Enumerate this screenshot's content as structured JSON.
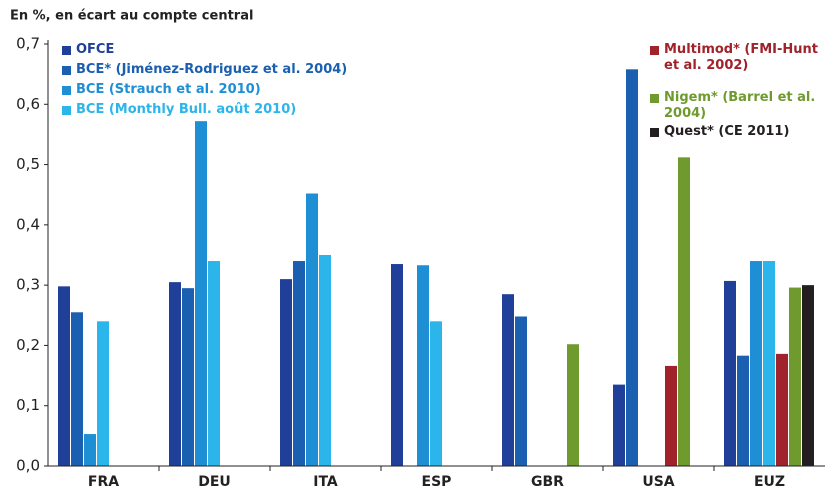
{
  "chart_data": {
    "type": "bar",
    "title": "En %, en écart au compte central",
    "categories": [
      "FRA",
      "DEU",
      "ITA",
      "ESP",
      "GBR",
      "USA",
      "EUZ"
    ],
    "series": [
      {
        "name": "OFCE",
        "color": "#1f3f99",
        "values": [
          0.298,
          0.305,
          0.31,
          0.335,
          0.285,
          0.135,
          0.307
        ]
      },
      {
        "name": "BCE* (Jiménez-Rodriguez et al. 2004)",
        "color": "#1a5fb0",
        "values": [
          0.255,
          0.295,
          0.34,
          null,
          0.248,
          0.658,
          0.183
        ]
      },
      {
        "name": "BCE (Strauch et al. 2010)",
        "color": "#1e8fd4",
        "values": [
          0.053,
          0.572,
          0.452,
          0.333,
          null,
          null,
          0.34
        ]
      },
      {
        "name": "BCE (Monthly Bull. août 2010)",
        "color": "#2bb5ea",
        "values": [
          0.24,
          0.34,
          0.35,
          0.24,
          null,
          null,
          0.34
        ]
      },
      {
        "name": "Multimod* (FMI-Hunt et al. 2002)",
        "color": "#a0222a",
        "values": [
          null,
          null,
          null,
          null,
          null,
          0.166,
          0.186
        ]
      },
      {
        "name": "Nigem* (Barrel et al. 2004)",
        "color": "#6f9a2e",
        "values": [
          null,
          null,
          null,
          null,
          0.202,
          0.512,
          0.296
        ]
      },
      {
        "name": "Quest* (CE 2011)",
        "color": "#231f20",
        "values": [
          null,
          null,
          null,
          null,
          null,
          null,
          0.3
        ]
      }
    ],
    "ylim": [
      0,
      0.7
    ],
    "yticks": [
      {
        "value": 0,
        "label": "0,0"
      },
      {
        "value": 0.1,
        "label": "0,1"
      },
      {
        "value": 0.2,
        "label": "0,2"
      },
      {
        "value": 0.3,
        "label": "0,3"
      },
      {
        "value": 0.4,
        "label": "0,4"
      },
      {
        "value": 0.5,
        "label": "0,5"
      },
      {
        "value": 0.6,
        "label": "0,6"
      },
      {
        "value": 0.7,
        "label": "0,7"
      }
    ]
  }
}
